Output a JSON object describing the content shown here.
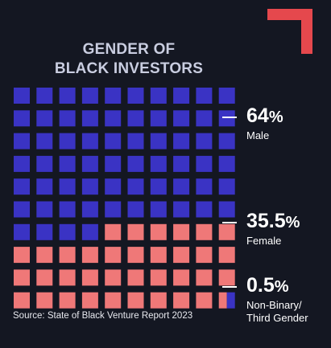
{
  "title_lines": [
    "GENDER OF",
    "BLACK INVESTORS"
  ],
  "source": "Source: State of Black Venture Report 2023",
  "colors": {
    "background": "#141722",
    "male": "#3a33c4",
    "female": "#ef7878",
    "nonbinary": "#3a33c4",
    "accent": "#e5484d"
  },
  "chart_data": {
    "type": "waffle",
    "title": "GENDER OF BLACK INVESTORS",
    "grid": {
      "rows": 10,
      "cols": 10
    },
    "categories": [
      "Male",
      "Female",
      "Non-Binary/ Third Gender"
    ],
    "values": [
      64,
      35.5,
      0.5
    ],
    "unit": "%",
    "labels": [
      {
        "value": "64",
        "symbol": "%",
        "name": "Male"
      },
      {
        "value": "35.5",
        "symbol": "%",
        "name": "Female"
      },
      {
        "value": "0.5",
        "symbol": "%",
        "name_lines": [
          "Non-Binary/",
          "Third Gender"
        ]
      }
    ]
  }
}
